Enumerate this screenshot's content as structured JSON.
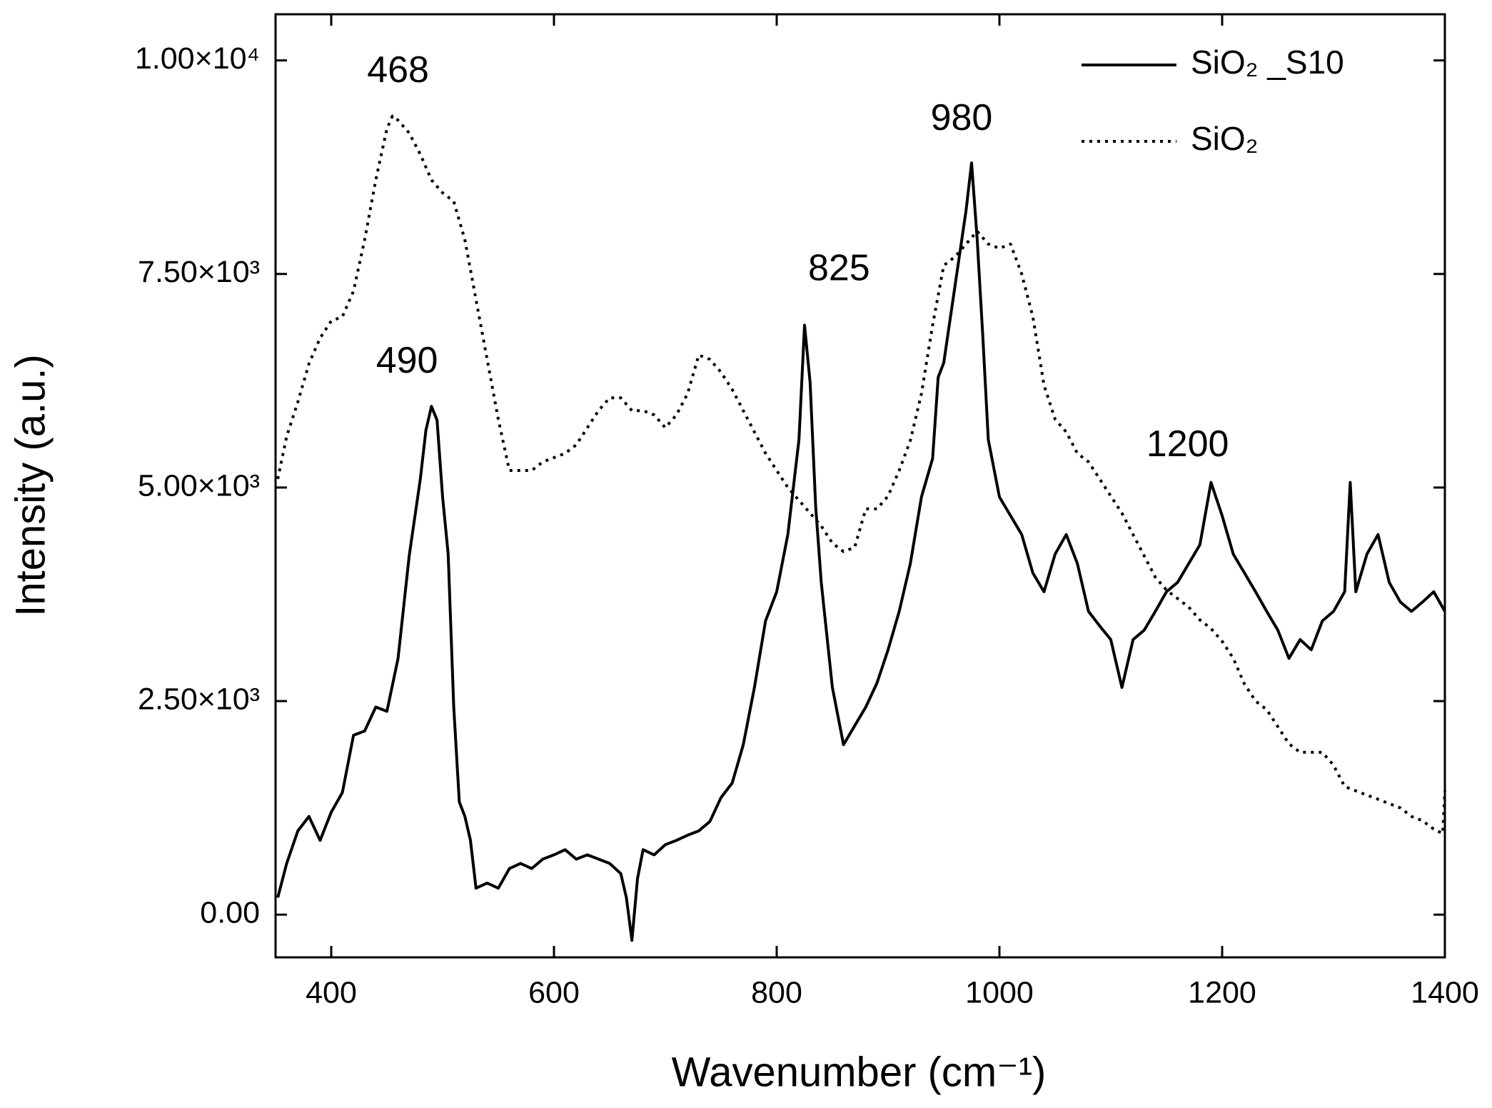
{
  "chart_data": {
    "type": "line",
    "xlabel": "Wavenumber (cm⁻¹)",
    "ylabel": "Intensity (a.u.)",
    "xlim": [
      350,
      1400
    ],
    "ylim": [
      -500,
      10540
    ],
    "xticks": [
      400,
      600,
      800,
      1000,
      1200,
      1400
    ],
    "yticks": [
      {
        "value": 0,
        "label": "0.00"
      },
      {
        "value": 2500,
        "label": "2.50×10³"
      },
      {
        "value": 5000,
        "label": "5.00×10³"
      },
      {
        "value": 7500,
        "label": "7.50×10³"
      },
      {
        "value": 10000,
        "label": "1.00×10⁴"
      }
    ],
    "legend": "upper right",
    "annotations": [
      {
        "text": "468",
        "x": 460,
        "y": 9860
      },
      {
        "text": "490",
        "x": 468,
        "y": 6460
      },
      {
        "text": "825",
        "x": 856,
        "y": 7540
      },
      {
        "text": "980",
        "x": 966,
        "y": 9300
      },
      {
        "text": "1200",
        "x": 1169,
        "y": 5480
      }
    ],
    "series": [
      {
        "name": "SiO₂ _S10",
        "color": "#000000",
        "style": "solid",
        "x": [
          352,
          360,
          370,
          380,
          390,
          400,
          410,
          420,
          430,
          440,
          450,
          460,
          470,
          480,
          485,
          490,
          495,
          500,
          505,
          510,
          515,
          520,
          525,
          530,
          540,
          550,
          560,
          570,
          580,
          590,
          600,
          610,
          620,
          630,
          640,
          650,
          660,
          665,
          670,
          675,
          680,
          690,
          700,
          710,
          720,
          730,
          740,
          750,
          760,
          770,
          780,
          790,
          800,
          810,
          820,
          825,
          830,
          835,
          840,
          850,
          860,
          870,
          880,
          890,
          900,
          910,
          920,
          930,
          940,
          945,
          950,
          960,
          970,
          975,
          980,
          985,
          990,
          1000,
          1010,
          1020,
          1030,
          1040,
          1050,
          1060,
          1070,
          1080,
          1090,
          1100,
          1110,
          1120,
          1130,
          1140,
          1150,
          1160,
          1170,
          1180,
          1190,
          1200,
          1210,
          1220,
          1230,
          1240,
          1250,
          1260,
          1270,
          1280,
          1290,
          1300,
          1310,
          1315,
          1320,
          1330,
          1340,
          1350,
          1360,
          1370,
          1380,
          1390,
          1400
        ],
        "values": [
          200,
          600,
          980,
          1150,
          870,
          1200,
          1430,
          2100,
          2150,
          2430,
          2380,
          3000,
          4200,
          5100,
          5670,
          5950,
          5790,
          4890,
          4220,
          2430,
          1320,
          1150,
          870,
          310,
          370,
          310,
          540,
          600,
          540,
          650,
          700,
          760,
          650,
          700,
          650,
          600,
          480,
          200,
          -300,
          420,
          760,
          700,
          820,
          870,
          930,
          980,
          1090,
          1370,
          1540,
          1990,
          2660,
          3440,
          3780,
          4450,
          5560,
          6900,
          6230,
          4780,
          3890,
          2660,
          1990,
          2210,
          2430,
          2710,
          3100,
          3550,
          4110,
          4890,
          5340,
          6290,
          6460,
          7350,
          8240,
          8800,
          7910,
          6790,
          5560,
          4890,
          4670,
          4450,
          4000,
          3780,
          4220,
          4450,
          4110,
          3550,
          3380,
          3220,
          2660,
          3220,
          3330,
          3550,
          3780,
          3890,
          4110,
          4330,
          5060,
          4670,
          4220,
          4000,
          3780,
          3550,
          3330,
          3000,
          3220,
          3100,
          3440,
          3550,
          3780,
          5060,
          3780,
          4220,
          4450,
          3890,
          3660,
          3550,
          3660,
          3780,
          3550
        ]
      },
      {
        "name": "SiO₂",
        "color": "#000000",
        "style": "dotted",
        "x": [
          352,
          360,
          370,
          380,
          390,
          400,
          410,
          420,
          430,
          440,
          450,
          455,
          460,
          470,
          480,
          490,
          500,
          510,
          520,
          530,
          540,
          550,
          560,
          570,
          580,
          590,
          600,
          610,
          620,
          630,
          640,
          650,
          660,
          670,
          680,
          690,
          700,
          710,
          720,
          730,
          740,
          750,
          760,
          770,
          780,
          790,
          800,
          810,
          820,
          830,
          840,
          850,
          860,
          870,
          880,
          890,
          900,
          910,
          920,
          930,
          940,
          950,
          960,
          970,
          980,
          990,
          1000,
          1010,
          1020,
          1030,
          1040,
          1050,
          1060,
          1070,
          1080,
          1090,
          1100,
          1110,
          1120,
          1130,
          1140,
          1150,
          1160,
          1170,
          1180,
          1190,
          1200,
          1210,
          1220,
          1230,
          1240,
          1250,
          1260,
          1270,
          1280,
          1290,
          1300,
          1310,
          1320,
          1330,
          1340,
          1350,
          1360,
          1370,
          1380,
          1390,
          1398,
          1400
        ],
        "values": [
          5100,
          5600,
          6000,
          6450,
          6750,
          6950,
          7000,
          7300,
          7900,
          8600,
          9200,
          9350,
          9300,
          9150,
          8900,
          8600,
          8450,
          8350,
          7900,
          7200,
          6500,
          5800,
          5200,
          5200,
          5200,
          5300,
          5350,
          5400,
          5500,
          5700,
          5900,
          6050,
          6050,
          5900,
          5900,
          5850,
          5700,
          5850,
          6100,
          6550,
          6500,
          6350,
          6150,
          5900,
          5650,
          5400,
          5200,
          5000,
          4850,
          4700,
          4550,
          4350,
          4250,
          4300,
          4750,
          4750,
          4900,
          5200,
          5550,
          6100,
          6900,
          7600,
          7700,
          7850,
          8000,
          7850,
          7800,
          7850,
          7500,
          7000,
          6200,
          5800,
          5650,
          5400,
          5300,
          5100,
          4900,
          4700,
          4450,
          4200,
          3950,
          3800,
          3700,
          3600,
          3450,
          3350,
          3200,
          3000,
          2700,
          2500,
          2400,
          2200,
          2000,
          1900,
          1900,
          1900,
          1750,
          1500,
          1450,
          1400,
          1350,
          1300,
          1250,
          1150,
          1100,
          1000,
          950,
          1450
        ]
      }
    ]
  }
}
